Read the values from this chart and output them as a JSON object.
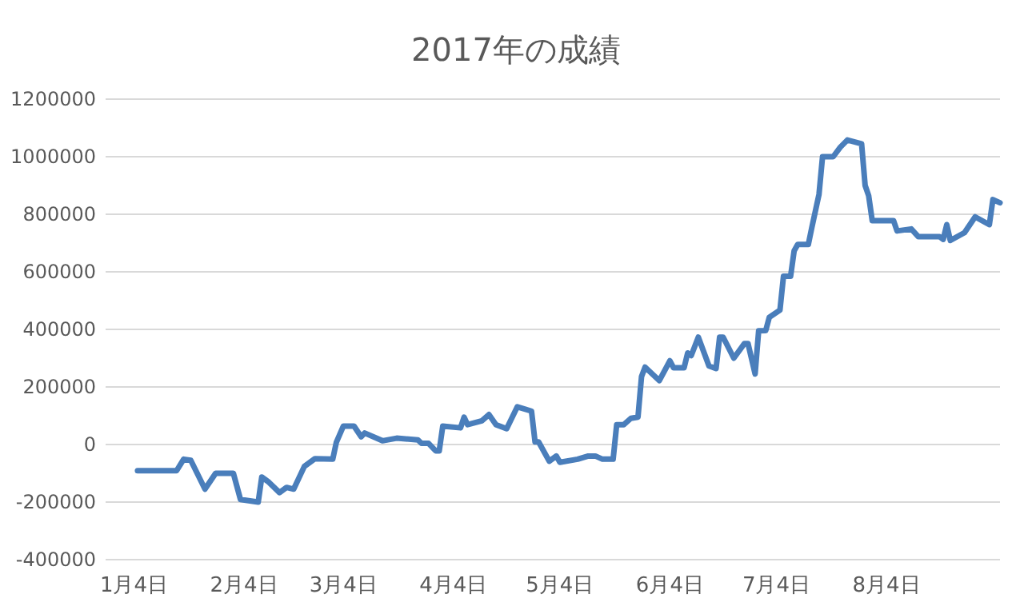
{
  "chart_data": {
    "type": "line",
    "title": "2017年の成績",
    "x": [
      "2017-01-05",
      "2017-01-16",
      "2017-01-18",
      "2017-01-20",
      "2017-01-24",
      "2017-01-27",
      "2017-02-01",
      "2017-02-03",
      "2017-02-08",
      "2017-02-09",
      "2017-02-11",
      "2017-02-14",
      "2017-02-16",
      "2017-02-18",
      "2017-02-21",
      "2017-02-24",
      "2017-03-01",
      "2017-03-02",
      "2017-03-04",
      "2017-03-07",
      "2017-03-09",
      "2017-03-10",
      "2017-03-15",
      "2017-03-19",
      "2017-03-25",
      "2017-03-26",
      "2017-03-28",
      "2017-03-30",
      "2017-03-31",
      "2017-04-01",
      "2017-04-06",
      "2017-04-07",
      "2017-04-08",
      "2017-04-12",
      "2017-04-14",
      "2017-04-16",
      "2017-04-19",
      "2017-04-22",
      "2017-04-26",
      "2017-04-27",
      "2017-04-28",
      "2017-05-01",
      "2017-05-03",
      "2017-05-04",
      "2017-05-09",
      "2017-05-12",
      "2017-05-14",
      "2017-05-16",
      "2017-05-19",
      "2017-05-20",
      "2017-05-22",
      "2017-05-24",
      "2017-05-26",
      "2017-05-27",
      "2017-05-28",
      "2017-06-01",
      "2017-06-04",
      "2017-06-05",
      "2017-06-08",
      "2017-06-09",
      "2017-06-10",
      "2017-06-12",
      "2017-06-15",
      "2017-06-17",
      "2017-06-18",
      "2017-06-19",
      "2017-06-22",
      "2017-06-25",
      "2017-06-26",
      "2017-06-28",
      "2017-06-29",
      "2017-07-01",
      "2017-07-02",
      "2017-07-05",
      "2017-07-06",
      "2017-07-08",
      "2017-07-09",
      "2017-07-10",
      "2017-07-13",
      "2017-07-14",
      "2017-07-16",
      "2017-07-17",
      "2017-07-20",
      "2017-07-22",
      "2017-07-24",
      "2017-07-28",
      "2017-07-29",
      "2017-07-30",
      "2017-07-31",
      "2017-08-06",
      "2017-08-07",
      "2017-08-11",
      "2017-08-13",
      "2017-08-19",
      "2017-08-20",
      "2017-08-21",
      "2017-08-22",
      "2017-08-26",
      "2017-08-29",
      "2017-09-02",
      "2017-09-03",
      "2017-09-05"
    ],
    "series": [
      {
        "color": "#4a7ebb",
        "values": [
          -91000,
          -91000,
          -51000,
          -55000,
          -155000,
          -100000,
          -100000,
          -191000,
          -200000,
          -113000,
          -131000,
          -167000,
          -149000,
          -155000,
          -76000,
          -49000,
          -51000,
          7000,
          64000,
          64000,
          27000,
          40000,
          13000,
          22000,
          16000,
          4000,
          4000,
          -22000,
          -22000,
          64000,
          58000,
          95000,
          69000,
          82000,
          104000,
          69000,
          55000,
          131000,
          116000,
          9000,
          9000,
          -58000,
          -40000,
          -62000,
          -51000,
          -40000,
          -40000,
          -51000,
          -51000,
          69000,
          69000,
          91000,
          95000,
          236000,
          269000,
          222000,
          291000,
          267000,
          267000,
          318000,
          309000,
          373000,
          273000,
          264000,
          373000,
          373000,
          300000,
          351000,
          351000,
          245000,
          395000,
          396000,
          442000,
          467000,
          585000,
          585000,
          673000,
          695000,
          695000,
          755000,
          869000,
          1000000,
          1000000,
          1033000,
          1058000,
          1045000,
          900000,
          864000,
          778000,
          778000,
          742000,
          749000,
          722000,
          722000,
          713000,
          764000,
          709000,
          736000,
          791000,
          764000,
          851000,
          840000
        ]
      }
    ],
    "xlim": [
      "2016-12-27",
      "2017-09-05"
    ],
    "xticks": [
      {
        "value": "2017-01-04",
        "label": "1月4日"
      },
      {
        "value": "2017-02-04",
        "label": "2月4日"
      },
      {
        "value": "2017-03-04",
        "label": "3月4日"
      },
      {
        "value": "2017-04-04",
        "label": "4月4日"
      },
      {
        "value": "2017-05-04",
        "label": "5月4日"
      },
      {
        "value": "2017-06-04",
        "label": "6月4日"
      },
      {
        "value": "2017-07-04",
        "label": "7月4日"
      },
      {
        "value": "2017-08-04",
        "label": "8月4日"
      }
    ],
    "ylim": [
      -400000,
      1200000
    ],
    "yticks": [
      -400000,
      -200000,
      0,
      200000,
      400000,
      600000,
      800000,
      1000000,
      1200000
    ],
    "grid": "y",
    "legend": false,
    "marker": "none",
    "line_style": "solid"
  }
}
